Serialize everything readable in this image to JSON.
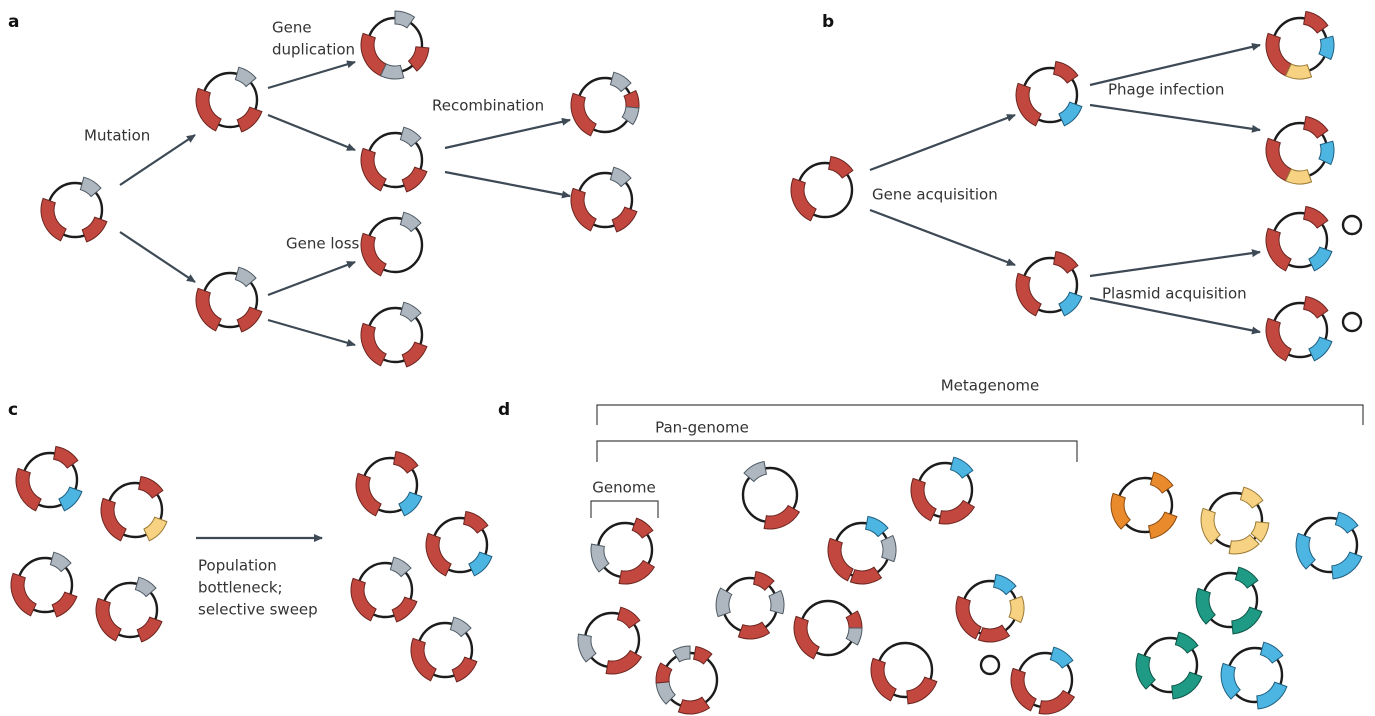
{
  "panel_a": {
    "label": "a",
    "mutation": "Mutation",
    "gene_duplication": [
      "Gene",
      "duplication"
    ],
    "recombination": "Recombination",
    "gene_loss": "Gene loss"
  },
  "panel_b": {
    "label": "b",
    "gene_acquisition": "Gene acquisition",
    "phage_infection": "Phage infection",
    "plasmid_acquisition": "Plasmid acquisition"
  },
  "panel_c": {
    "label": "c",
    "bottleneck": [
      "Population",
      "bottleneck;",
      "selective sweep"
    ]
  },
  "panel_d": {
    "label": "d",
    "metagenome": "Metagenome",
    "pan_genome": "Pan-genome",
    "genome": "Genome"
  }
}
